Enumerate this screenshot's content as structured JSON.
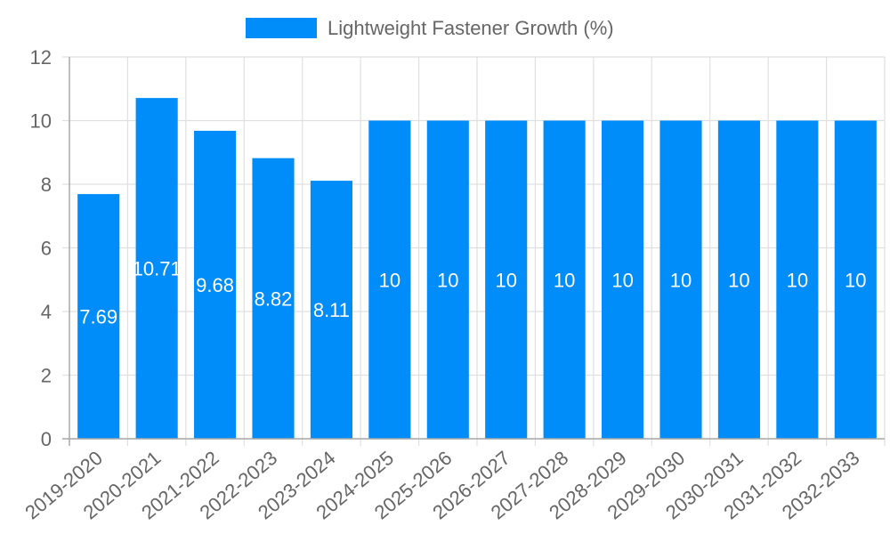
{
  "chart_data": {
    "type": "bar",
    "title": "",
    "xlabel": "",
    "ylabel": "",
    "ylim": [
      0,
      12
    ],
    "yticks": [
      0,
      2,
      4,
      6,
      8,
      10,
      12
    ],
    "grid": true,
    "legend_position": "top",
    "categories": [
      "2019-2020",
      "2020-2021",
      "2021-2022",
      "2022-2023",
      "2023-2024",
      "2024-2025",
      "2025-2026",
      "2026-2027",
      "2027-2028",
      "2028-2029",
      "2029-2030",
      "2030-2031",
      "2031-2032",
      "2032-2033"
    ],
    "series": [
      {
        "name": "Lightweight Fastener Growth (%)",
        "color": "#008cf9",
        "values": [
          7.69,
          10.71,
          9.68,
          8.82,
          8.11,
          10,
          10,
          10,
          10,
          10,
          10,
          10,
          10,
          10
        ],
        "labels": [
          "7.69",
          "10.71",
          "9.68",
          "8.82",
          "8.11",
          "10",
          "10",
          "10",
          "10",
          "10",
          "10",
          "10",
          "10",
          "10"
        ]
      }
    ]
  },
  "legend": {
    "label": "Lightweight Fastener Growth (%)",
    "swatch_color": "#008cf9"
  },
  "colors": {
    "grid": "#e0e0e0",
    "axis": "#a8a8a8",
    "tick_text": "#666666",
    "bar_label": "#ffffff"
  }
}
